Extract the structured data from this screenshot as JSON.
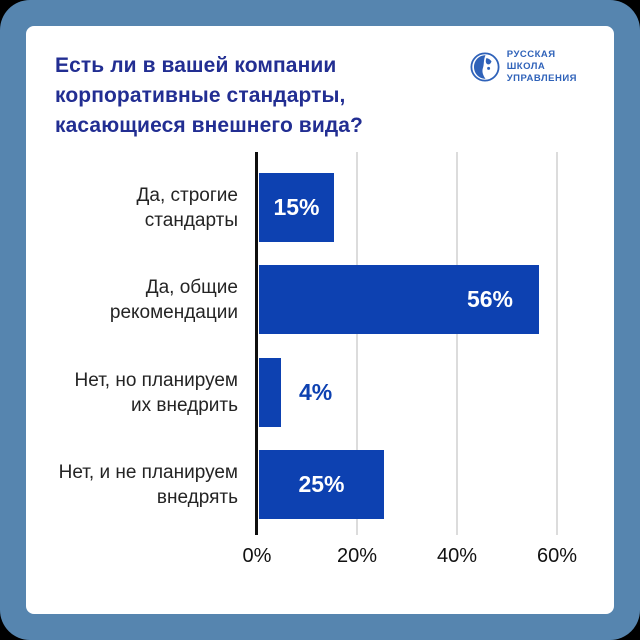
{
  "frame": {
    "outer_background": "#000000",
    "border_color": "#5685af",
    "card_background": "#ffffff"
  },
  "header": {
    "title": "Есть ли в вашей компании корпоративные стандарты, касающиеся внешнего вида?",
    "title_lines": [
      "Есть ли в вашей компании",
      "корпоративные стандарты,",
      "касающиеся внешнего вида?"
    ],
    "title_color": "#222e92",
    "logo": {
      "icon": "rsu-face-emblem-icon",
      "line1": "РУССКАЯ",
      "line2": "ШКОЛА",
      "line3": "УПРАВЛЕНИЯ",
      "color": "#2f62b9"
    }
  },
  "chart_data": {
    "type": "bar",
    "orientation": "horizontal",
    "title": "Есть ли в вашей компании корпоративные стандарты, касающиеся внешнего вида?",
    "categories": [
      "Да, строгие стандарты",
      "Да, общие рекомендации",
      "Нет, но планируем их внедрить",
      "Нет, и не планируем внедрять"
    ],
    "category_lines": [
      [
        "Да, строгие",
        "стандарты"
      ],
      [
        "Да, общие",
        "рекомендации"
      ],
      [
        "Нет, но планируем",
        "их внедрить"
      ],
      [
        "Нет, и не планируем",
        "внедрять"
      ]
    ],
    "values": [
      15,
      56,
      4,
      25
    ],
    "value_labels": [
      "15%",
      "56%",
      "4%",
      "25%"
    ],
    "value_label_positions": [
      "inside-center",
      "inside-right",
      "outside",
      "inside-center"
    ],
    "value_label_color_inside": "#ffffff",
    "bar_color": "#0d41b1",
    "x_ticks": [
      "0%",
      "20%",
      "40%",
      "60%"
    ],
    "x_tick_values": [
      0,
      20,
      40,
      60
    ],
    "xlim": [
      0,
      70
    ],
    "grid": true,
    "gridline_color": "#dcdcdc",
    "axis_color": "#0e0e0e",
    "legend": false
  }
}
